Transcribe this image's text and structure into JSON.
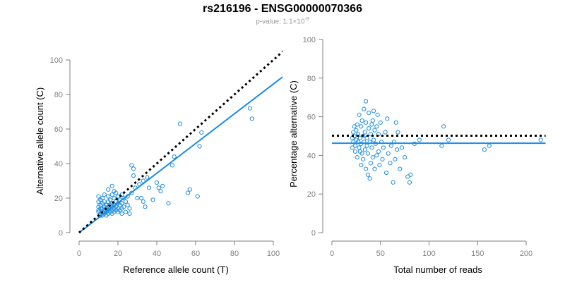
{
  "figure": {
    "title": "rs216196 - ENSG00000070366",
    "pvalue_prefix": "p-value: 1.1×10",
    "pvalue_exponent": "-8"
  },
  "colors": {
    "points": "#1f8fe0",
    "fit_line": "#1a8ae6",
    "reference_line": "#000000",
    "axis": "#808080",
    "tick_text": "#808080"
  },
  "chart_data": [
    {
      "type": "scatter",
      "xlabel": "Reference allele count (T)",
      "ylabel": "Alternative allele count (C)",
      "xlim": [
        0,
        110
      ],
      "ylim": [
        0,
        105
      ],
      "xticks": [
        0,
        20,
        40,
        60,
        80,
        100
      ],
      "yticks": [
        0,
        20,
        40,
        60,
        80,
        100
      ],
      "grid": false,
      "fit_line": {
        "from": [
          0,
          0
        ],
        "to": [
          111,
          95.5
        ],
        "style": "solid"
      },
      "reference_line": {
        "from": [
          0,
          0
        ],
        "to": [
          111,
          111
        ],
        "style": "dotted"
      },
      "points": [
        [
          10,
          21
        ],
        [
          10,
          18
        ],
        [
          10,
          15
        ],
        [
          10,
          13
        ],
        [
          10,
          12
        ],
        [
          11,
          19
        ],
        [
          11,
          16
        ],
        [
          11,
          14
        ],
        [
          11,
          11
        ],
        [
          11,
          10
        ],
        [
          12,
          20
        ],
        [
          12,
          17
        ],
        [
          12,
          14
        ],
        [
          12,
          12
        ],
        [
          12,
          10
        ],
        [
          13,
          22
        ],
        [
          13,
          18
        ],
        [
          13,
          15
        ],
        [
          13,
          13
        ],
        [
          13,
          11
        ],
        [
          14,
          16
        ],
        [
          14,
          14
        ],
        [
          14,
          12
        ],
        [
          14,
          10
        ],
        [
          15,
          25
        ],
        [
          15,
          21
        ],
        [
          15,
          18
        ],
        [
          15,
          15
        ],
        [
          15,
          13
        ],
        [
          15,
          11
        ],
        [
          16,
          19
        ],
        [
          16,
          16
        ],
        [
          16,
          14
        ],
        [
          16,
          12
        ],
        [
          17,
          27
        ],
        [
          17,
          22
        ],
        [
          17,
          17
        ],
        [
          17,
          15
        ],
        [
          17,
          13
        ],
        [
          17,
          11
        ],
        [
          18,
          24
        ],
        [
          18,
          20
        ],
        [
          18,
          16
        ],
        [
          18,
          14
        ],
        [
          18,
          12
        ],
        [
          19,
          23
        ],
        [
          19,
          18
        ],
        [
          19,
          15
        ],
        [
          19,
          13
        ],
        [
          20,
          21
        ],
        [
          20,
          17
        ],
        [
          20,
          14
        ],
        [
          20,
          12
        ],
        [
          21,
          19
        ],
        [
          21,
          16
        ],
        [
          21,
          13
        ],
        [
          22,
          22
        ],
        [
          22,
          17
        ],
        [
          22,
          14
        ],
        [
          22,
          11
        ],
        [
          23,
          20
        ],
        [
          23,
          15
        ],
        [
          24,
          18
        ],
        [
          24,
          12
        ],
        [
          25,
          21
        ],
        [
          25,
          16
        ],
        [
          26,
          14
        ],
        [
          26,
          11
        ],
        [
          27,
          39
        ],
        [
          27,
          23
        ],
        [
          28,
          37
        ],
        [
          28,
          33
        ],
        [
          29,
          26
        ],
        [
          30,
          20
        ],
        [
          31,
          28
        ],
        [
          32,
          20
        ],
        [
          33,
          30
        ],
        [
          33,
          18
        ],
        [
          34,
          15
        ],
        [
          35,
          32
        ],
        [
          36,
          26
        ],
        [
          38,
          19
        ],
        [
          40,
          29
        ],
        [
          41,
          26
        ],
        [
          42,
          24
        ],
        [
          43,
          27
        ],
        [
          46,
          17
        ],
        [
          48,
          39
        ],
        [
          49,
          44
        ],
        [
          52,
          63
        ],
        [
          56,
          23
        ],
        [
          57,
          25
        ],
        [
          61,
          21
        ],
        [
          62,
          50
        ],
        [
          63,
          58
        ],
        [
          88,
          72
        ],
        [
          89,
          66
        ],
        [
          111,
          105
        ]
      ]
    },
    {
      "type": "scatter",
      "xlabel": "Total number of reads",
      "ylabel": "Percentage alternative (C)",
      "xlim": [
        0,
        215
      ],
      "ylim": [
        0,
        100
      ],
      "xticks": [
        0,
        50,
        100,
        150,
        200
      ],
      "yticks": [
        0,
        20,
        40,
        60,
        80,
        100
      ],
      "grid": false,
      "fit_line": {
        "from": [
          0,
          46.3
        ],
        "to": [
          220,
          46.3
        ],
        "style": "solid"
      },
      "reference_line": {
        "from": [
          0,
          50.2
        ],
        "to": [
          220,
          50.2
        ],
        "style": "dotted"
      },
      "points": [
        [
          21,
          49
        ],
        [
          21,
          44
        ],
        [
          22,
          52
        ],
        [
          22,
          47
        ],
        [
          23,
          55
        ],
        [
          23,
          50
        ],
        [
          24,
          45
        ],
        [
          24,
          42
        ],
        [
          25,
          48
        ],
        [
          25,
          53
        ],
        [
          26,
          39
        ],
        [
          26,
          56
        ],
        [
          27,
          47
        ],
        [
          27,
          51
        ],
        [
          28,
          44
        ],
        [
          28,
          61
        ],
        [
          29,
          42
        ],
        [
          29,
          49
        ],
        [
          30,
          35
        ],
        [
          30,
          55
        ],
        [
          30,
          46
        ],
        [
          31,
          41
        ],
        [
          31,
          58
        ],
        [
          32,
          50
        ],
        [
          32,
          38
        ],
        [
          33,
          64
        ],
        [
          33,
          47
        ],
        [
          34,
          43
        ],
        [
          34,
          52
        ],
        [
          35,
          33
        ],
        [
          35,
          68
        ],
        [
          35,
          57
        ],
        [
          36,
          45
        ],
        [
          36,
          49
        ],
        [
          37,
          30
        ],
        [
          37,
          41
        ],
        [
          38,
          54
        ],
        [
          38,
          62
        ],
        [
          39,
          28
        ],
        [
          39,
          47
        ],
        [
          40,
          51
        ],
        [
          40,
          36
        ],
        [
          41,
          44
        ],
        [
          41,
          56
        ],
        [
          42,
          58
        ],
        [
          42,
          39
        ],
        [
          43,
          63
        ],
        [
          43,
          48
        ],
        [
          44,
          53
        ],
        [
          44,
          33
        ],
        [
          45,
          46
        ],
        [
          46,
          40
        ],
        [
          46,
          55
        ],
        [
          47,
          61
        ],
        [
          48,
          42
        ],
        [
          48,
          51
        ],
        [
          49,
          35
        ],
        [
          50,
          57
        ],
        [
          51,
          47
        ],
        [
          52,
          38
        ],
        [
          53,
          44
        ],
        [
          55,
          52
        ],
        [
          56,
          31
        ],
        [
          57,
          59
        ],
        [
          58,
          41
        ],
        [
          60,
          36
        ],
        [
          61,
          45
        ],
        [
          63,
          26
        ],
        [
          64,
          47
        ],
        [
          65,
          38
        ],
        [
          66,
          57
        ],
        [
          67,
          43
        ],
        [
          68,
          52
        ],
        [
          70,
          33
        ],
        [
          72,
          44
        ],
        [
          75,
          39
        ],
        [
          78,
          29
        ],
        [
          80,
          26
        ],
        [
          81,
          30
        ],
        [
          85,
          46
        ],
        [
          90,
          48
        ],
        [
          113,
          45
        ],
        [
          115,
          55
        ],
        [
          120,
          48
        ],
        [
          157,
          43
        ],
        [
          162,
          45
        ],
        [
          215,
          48
        ]
      ]
    }
  ]
}
